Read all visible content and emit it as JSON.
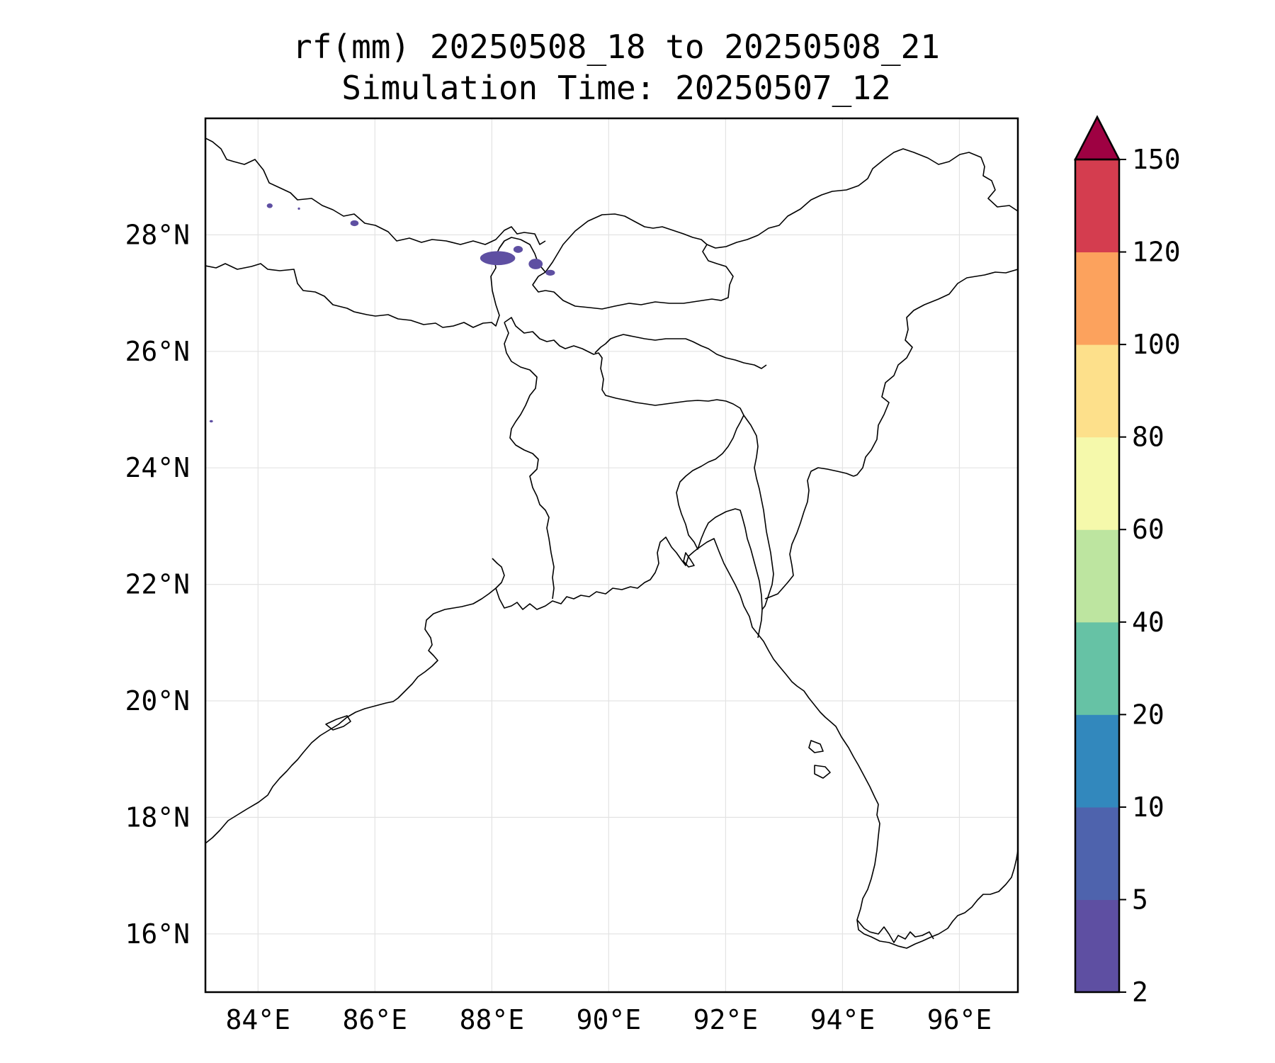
{
  "title_line1": "rf(mm) 20250508_18 to 20250508_21",
  "title_line2": "Simulation Time: 20250507_12",
  "map": {
    "lon_range": [
      83.1,
      97.0
    ],
    "lat_range": [
      15.0,
      30.0
    ],
    "lon_ticks": [
      {
        "value": 84,
        "label": "84°E"
      },
      {
        "value": 86,
        "label": "86°E"
      },
      {
        "value": 88,
        "label": "88°E"
      },
      {
        "value": 90,
        "label": "90°E"
      },
      {
        "value": 92,
        "label": "92°E"
      },
      {
        "value": 94,
        "label": "94°E"
      },
      {
        "value": 96,
        "label": "96°E"
      }
    ],
    "lat_ticks": [
      {
        "value": 28,
        "label": "28°N"
      },
      {
        "value": 26,
        "label": "26°N"
      },
      {
        "value": 24,
        "label": "24°N"
      },
      {
        "value": 22,
        "label": "22°N"
      },
      {
        "value": 20,
        "label": "20°N"
      },
      {
        "value": 18,
        "label": "18°N"
      },
      {
        "value": 16,
        "label": "16°N"
      }
    ],
    "gridlines": true,
    "rain_color": "#5e4fa2",
    "rain_patches": [
      {
        "lon": 84.2,
        "lat": 28.5,
        "rx": 0.05,
        "ry": 0.04
      },
      {
        "lon": 84.7,
        "lat": 28.45,
        "rx": 0.02,
        "ry": 0.02
      },
      {
        "lon": 85.65,
        "lat": 28.2,
        "rx": 0.07,
        "ry": 0.05
      },
      {
        "lon": 88.1,
        "lat": 27.6,
        "rx": 0.3,
        "ry": 0.12
      },
      {
        "lon": 88.45,
        "lat": 27.75,
        "rx": 0.08,
        "ry": 0.06
      },
      {
        "lon": 88.75,
        "lat": 27.5,
        "rx": 0.12,
        "ry": 0.09
      },
      {
        "lon": 89.0,
        "lat": 27.35,
        "rx": 0.08,
        "ry": 0.05
      },
      {
        "lon": 83.2,
        "lat": 24.8,
        "rx": 0.03,
        "ry": 0.02
      }
    ]
  },
  "colorbar": {
    "levels": [
      "2",
      "5",
      "10",
      "20",
      "40",
      "60",
      "80",
      "100",
      "120",
      "150"
    ],
    "colors": [
      "#5e4fa2",
      "#4e63ad",
      "#3288bd",
      "#66c2a5",
      "#bde5a0",
      "#f5f9ab",
      "#fde08b",
      "#fca25d",
      "#d43d4f"
    ],
    "extend_color": "#9e0142"
  }
}
